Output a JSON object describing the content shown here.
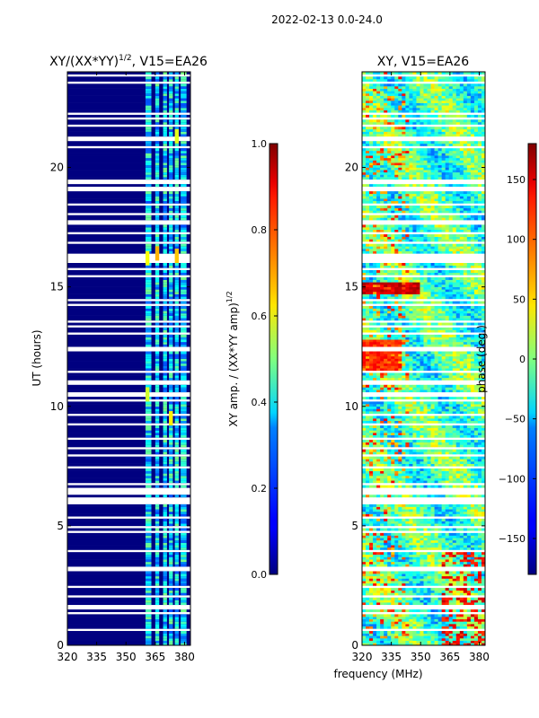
{
  "suptitle": "2022-02-13 0.0-24.0",
  "xlabel_shared": "frequency (MHz)",
  "chart_data": [
    {
      "type": "heatmap",
      "title": "XY/(XX*YY)",
      "title_sup": "1/2",
      "title_suffix": ", V15=EA26",
      "xlabel": "",
      "ylabel": "UT (hours)",
      "xlim": [
        320,
        383
      ],
      "ylim": [
        0,
        24
      ],
      "xticks": [
        "320",
        "335",
        "350",
        "365",
        "380"
      ],
      "xtick_values": [
        320,
        335,
        350,
        365,
        380
      ],
      "yticks": [
        "0",
        "5",
        "10",
        "15",
        "20"
      ],
      "ytick_values": [
        0,
        5,
        10,
        15,
        20
      ],
      "colormap": "jet",
      "colorbar": {
        "label": "XY amp. / (XX*YY amp)",
        "label_sup": "1/2",
        "range": [
          0.0,
          1.0
        ],
        "ticks": [
          "0.0",
          "0.2",
          "0.4",
          "0.6",
          "0.8",
          "1.0"
        ],
        "tick_values": [
          0.0,
          0.2,
          0.4,
          0.6,
          0.8,
          1.0
        ]
      },
      "dominant_value": 0.0,
      "active_channels_mhz": [
        [
          360,
          363
        ],
        [
          365,
          367
        ],
        [
          369,
          371
        ],
        [
          372,
          374
        ],
        [
          375,
          377
        ],
        [
          378,
          381
        ]
      ],
      "active_channel_typical_value": 0.35,
      "bright_patches": [
        {
          "freq_mhz": 361,
          "ut_hours": 16.2,
          "value": 0.62
        },
        {
          "freq_mhz": 366,
          "ut_hours": 16.4,
          "value": 0.7
        },
        {
          "freq_mhz": 376,
          "ut_hours": 16.3,
          "value": 0.68
        },
        {
          "freq_mhz": 361,
          "ut_hours": 10.5,
          "value": 0.58
        },
        {
          "freq_mhz": 373,
          "ut_hours": 9.5,
          "value": 0.64
        },
        {
          "freq_mhz": 376,
          "ut_hours": 21.3,
          "value": 0.6
        }
      ]
    },
    {
      "type": "heatmap",
      "title": "XY, V15=EA26",
      "xlabel": "",
      "ylabel": "",
      "xlim": [
        320,
        383
      ],
      "ylim": [
        0,
        24
      ],
      "xticks": [
        "320",
        "335",
        "350",
        "365",
        "380"
      ],
      "xtick_values": [
        320,
        335,
        350,
        365,
        380
      ],
      "yticks": [
        "0",
        "5",
        "10",
        "15",
        "20"
      ],
      "ytick_values": [
        0,
        5,
        10,
        15,
        20
      ],
      "colormap": "jet",
      "colorbar": {
        "label": "phase (deg.)",
        "range": [
          -180,
          180
        ],
        "ticks": [
          "−150",
          "−100",
          "−50",
          "0",
          "50",
          "100",
          "150"
        ],
        "tick_values": [
          -150,
          -100,
          -50,
          0,
          50,
          100,
          150
        ]
      },
      "typical_value": -20,
      "notable_bands": [
        {
          "ut_hours": [
            14.7,
            15.2
          ],
          "freq_mhz": [
            320,
            350
          ],
          "value": 150
        },
        {
          "ut_hours": [
            11.5,
            12.8
          ],
          "freq_mhz": [
            320,
            340
          ],
          "value": 120
        }
      ]
    }
  ]
}
